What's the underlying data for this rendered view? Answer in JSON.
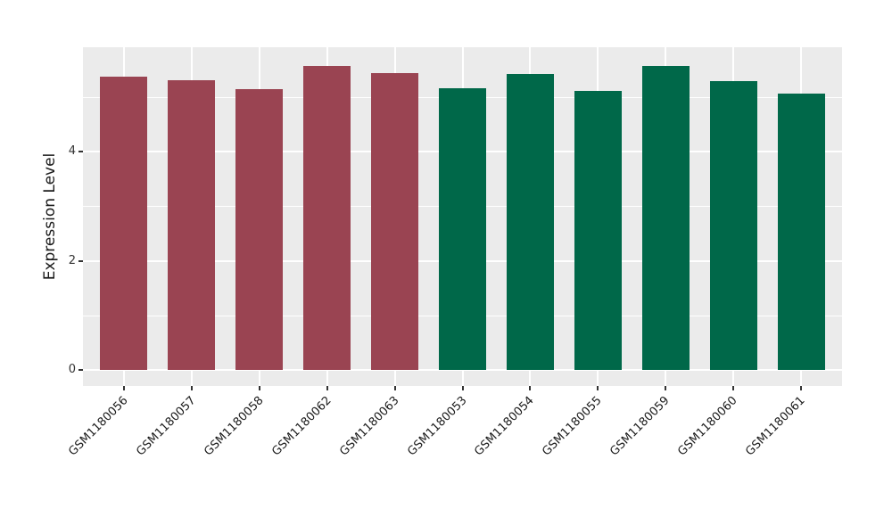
{
  "chart_data": {
    "type": "bar",
    "title": "",
    "xlabel": "",
    "ylabel": "Expression Level",
    "categories": [
      "GSM1180056",
      "GSM1180057",
      "GSM1180058",
      "GSM1180062",
      "GSM1180063",
      "GSM1180053",
      "GSM1180054",
      "GSM1180055",
      "GSM1180059",
      "GSM1180060",
      "GSM1180061"
    ],
    "values": [
      5.38,
      5.31,
      5.15,
      5.57,
      5.45,
      5.17,
      5.43,
      5.12,
      5.58,
      5.3,
      5.07
    ],
    "bar_groups": [
      "group1",
      "group1",
      "group1",
      "group1",
      "group1",
      "group2",
      "group2",
      "group2",
      "group2",
      "group2",
      "group2"
    ],
    "group_colors": {
      "group1": "#9A4452",
      "group2": "#006849"
    },
    "yticks_major": [
      0,
      2,
      4
    ],
    "yticks_minor": [
      1,
      3,
      5
    ],
    "ylim": [
      -0.29,
      5.92
    ],
    "bar_width_fraction": 0.7,
    "grid": "on",
    "legend": "none",
    "panel_bg": "#EBEBEB",
    "grid_color": "#FFFFFF",
    "figure_bg": "#FFFFFF"
  }
}
